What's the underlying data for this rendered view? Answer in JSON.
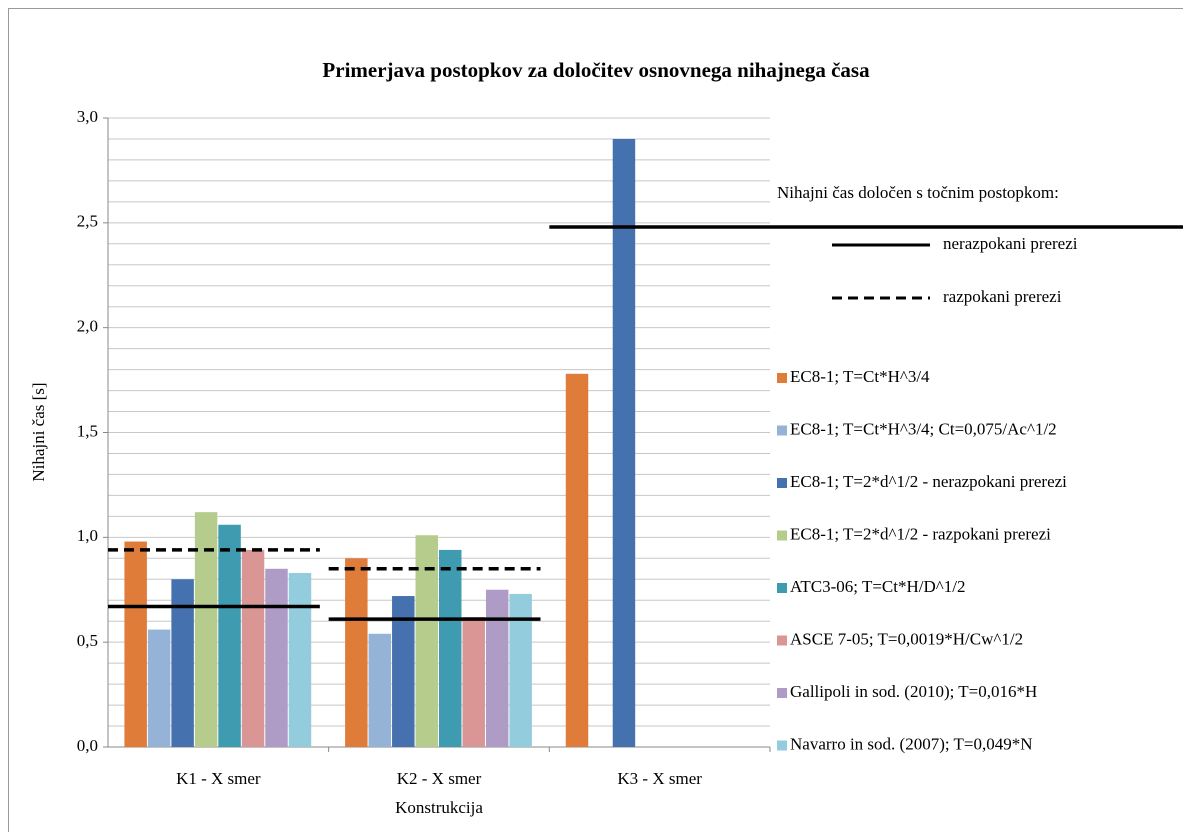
{
  "chart_data": {
    "type": "bar",
    "title": "Primerjava postopkov za določitev osnovnega nihajnega časa",
    "x_label": "Konstrukcija",
    "y_label": "Nihajni čas [s]",
    "categories": [
      "K1 - X smer",
      "K2 - X smer",
      "K3 - X smer"
    ],
    "series": [
      {
        "name": "EC8-1; T=Ct*H^3/4",
        "color": "#E07C3A",
        "values": [
          0.98,
          0.9,
          1.78
        ]
      },
      {
        "name": "EC8-1; T=Ct*H^3/4; Ct=0,075/Ac^1/2",
        "color": "#95B3D7",
        "values": [
          0.56,
          0.54,
          null
        ]
      },
      {
        "name": "EC8-1; T=2*d^1/2 - nerazpokani prerezi",
        "color": "#4572AE",
        "values": [
          0.8,
          0.72,
          2.9
        ]
      },
      {
        "name": "EC8-1; T=2*d^1/2 - razpokani prerezi",
        "color": "#B5CC8C",
        "values": [
          1.12,
          1.01,
          null
        ]
      },
      {
        "name": "ATC3-06; T=Ct*H/D^1/2",
        "color": "#3E9BB0",
        "values": [
          1.06,
          0.94,
          null
        ]
      },
      {
        "name": "ASCE 7-05; T=0,0019*H/Cw^1/2",
        "color": "#D99694",
        "values": [
          0.94,
          0.62,
          null
        ]
      },
      {
        "name": "Gallipoli in sod. (2010); T=0,016*H",
        "color": "#AE9CC6",
        "values": [
          0.85,
          0.75,
          null
        ]
      },
      {
        "name": "Navarro in sod. (2007); T=0,049*N",
        "color": "#93CDDD",
        "values": [
          0.83,
          0.73,
          null
        ]
      }
    ],
    "reference_lines": {
      "title": "Nihajni čas določen s točnim postopkom:",
      "series": [
        {
          "name": "nerazpokani prerezi",
          "style": "solid",
          "color": "#000000",
          "values": [
            0.67,
            0.61,
            2.48
          ]
        },
        {
          "name": "razpokani prerezi",
          "style": "dashed",
          "color": "#000000",
          "values": [
            0.94,
            0.85,
            null
          ]
        }
      ]
    },
    "ylim": [
      0,
      3
    ],
    "yticks": [
      {
        "value": 0,
        "label": "0,0"
      },
      {
        "value": 0.5,
        "label": "0,5"
      },
      {
        "value": 1,
        "label": "1,0"
      },
      {
        "value": 1.5,
        "label": "1,5"
      },
      {
        "value": 2,
        "label": "2,0"
      },
      {
        "value": 2.5,
        "label": "2,5"
      },
      {
        "value": 3,
        "label": "3,0"
      }
    ],
    "yminorticks": [
      0.1,
      0.2,
      0.3,
      0.4,
      0.6,
      0.7,
      0.8,
      0.9,
      1.1,
      1.2,
      1.3,
      1.4,
      1.6,
      1.7,
      1.8,
      1.9,
      2.1,
      2.2,
      2.3,
      2.4,
      2.6,
      2.7,
      2.8,
      2.9
    ],
    "grid": true
  }
}
